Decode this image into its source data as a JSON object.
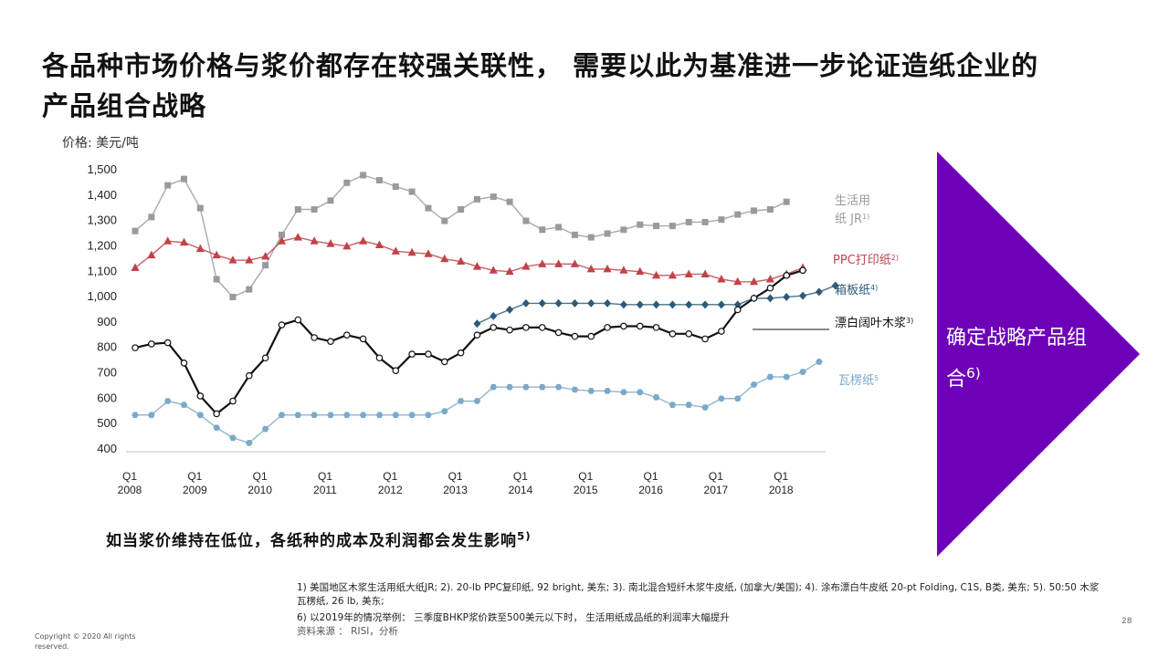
{
  "title": "各品种市场价格与浆价都存在较强关联性， 需要以此为基准进一步论证造纸企业的产品组合战略",
  "arrow_text": "确定战略产品组合",
  "arrow_sup": "6)",
  "subtitle": "如当浆价维持在低位，各纸种的成本及利润都会发生影响",
  "subtitle_sup": "5)",
  "footnotes": {
    "line1": "1) 美国地区木浆生活用纸大纸JR; 2). 20-lb PPC复印纸, 92 bright, 美东; 3). 南北混合短纤木浆牛皮纸, (加拿大/美国); 4). 涂布漂白牛皮纸 20-pt Folding, C1S, B类, 美东; 5). 50:50 木浆瓦楞纸, 26 lb, 美东;",
    "line2": "6) 以2019年的情况举例： 三季度BHKP浆价跌至500美元以下时， 生活用纸成品纸的利润率大幅提升",
    "source": "资料来源 ： RISI，分析"
  },
  "copyright": "Copyright © 2020 All rights reserved.",
  "page_number": "28",
  "colors": {
    "purple": "#6e00b8",
    "tissue": "#9a9a9a",
    "ppc": "#c0434a",
    "board": "#2e5a78",
    "pulp": "#111111",
    "corrugated": "#7ba9c9"
  },
  "chart_data": {
    "type": "line",
    "ylabel": "价格: 美元/吨",
    "ylim": [
      400,
      1500
    ],
    "yticks": [
      400,
      500,
      600,
      700,
      800,
      900,
      1000,
      1100,
      1200,
      1300,
      1400,
      1500
    ],
    "ytick_labels": [
      "400",
      "500",
      "600",
      "700",
      "800",
      "900",
      "1,000",
      "1,100",
      "1,200",
      "1,300",
      "1,400",
      "1,500"
    ],
    "x_start": 2008.0,
    "x_step": 0.25,
    "xticks": [
      {
        "q": "Q1",
        "year": "2008",
        "x": 2008
      },
      {
        "q": "Q1",
        "year": "2009",
        "x": 2009
      },
      {
        "q": "Q1",
        "year": "2010",
        "x": 2010
      },
      {
        "q": "Q1",
        "year": "2011",
        "x": 2011
      },
      {
        "q": "Q1",
        "year": "2012",
        "x": 2012
      },
      {
        "q": "Q1",
        "year": "2013",
        "x": 2013
      },
      {
        "q": "Q1",
        "year": "2014",
        "x": 2014
      },
      {
        "q": "Q1",
        "year": "2015",
        "x": 2015
      },
      {
        "q": "Q1",
        "year": "2016",
        "x": 2016
      },
      {
        "q": "Q1",
        "year": "2017",
        "x": 2017
      },
      {
        "q": "Q1",
        "year": "2018",
        "x": 2018
      }
    ],
    "xlim": [
      2008.0,
      2018.6
    ],
    "series": [
      {
        "name": "生活用纸 JR",
        "sup": "1)",
        "color": "#9a9a9a",
        "marker": "square",
        "line": false,
        "values": [
          1255,
          1310,
          1435,
          1460,
          1345,
          1065,
          995,
          1025,
          1120,
          1240,
          1340,
          1340,
          1375,
          1445,
          1475,
          1455,
          1430,
          1410,
          1345,
          1295,
          1340,
          1380,
          1390,
          1370,
          1295,
          1260,
          1270,
          1240,
          1230,
          1245,
          1260,
          1280,
          1275,
          1275,
          1290,
          1290,
          1300,
          1320,
          1335,
          1340,
          1370
        ]
      },
      {
        "name": "PPC打印纸",
        "sup": "2)",
        "color": "#c0434a",
        "marker": "triangle",
        "line": false,
        "values": [
          1110,
          1160,
          1215,
          1210,
          1185,
          1160,
          1140,
          1140,
          1155,
          1215,
          1230,
          1215,
          1205,
          1195,
          1215,
          1200,
          1175,
          1170,
          1165,
          1145,
          1135,
          1115,
          1100,
          1095,
          1115,
          1125,
          1125,
          1125,
          1105,
          1105,
          1100,
          1095,
          1080,
          1080,
          1085,
          1085,
          1065,
          1055,
          1055,
          1065,
          1085,
          1110
        ]
      },
      {
        "name": "箱板纸",
        "sup": "4)",
        "color": "#2e5a78",
        "marker": "diamond",
        "line": false,
        "start_index": 21,
        "values": [
          890,
          920,
          945,
          970,
          970,
          970,
          970,
          970,
          970,
          965,
          965,
          965,
          965,
          965,
          965,
          965,
          965,
          990,
          990,
          995,
          1000,
          1015,
          1040
        ]
      },
      {
        "name": "漂白阔叶木浆",
        "sup": "3)",
        "color": "#111111",
        "marker": "circle",
        "line": true,
        "values": [
          795,
          810,
          815,
          735,
          605,
          535,
          585,
          685,
          755,
          885,
          905,
          835,
          820,
          845,
          830,
          755,
          705,
          770,
          770,
          740,
          775,
          845,
          875,
          865,
          875,
          875,
          855,
          840,
          840,
          875,
          880,
          880,
          875,
          850,
          850,
          830,
          860,
          945,
          990,
          1030,
          1080,
          1100
        ]
      },
      {
        "name": "瓦楞纸",
        "sup": "5",
        "color": "#7ba9c9",
        "marker": "hexagon",
        "line": false,
        "values": [
          530,
          530,
          585,
          570,
          530,
          480,
          440,
          420,
          475,
          530,
          530,
          530,
          530,
          530,
          530,
          530,
          530,
          530,
          530,
          545,
          585,
          585,
          640,
          640,
          640,
          640,
          640,
          630,
          625,
          625,
          620,
          620,
          600,
          570,
          570,
          560,
          595,
          595,
          650,
          680,
          680,
          700,
          740
        ]
      }
    ]
  }
}
